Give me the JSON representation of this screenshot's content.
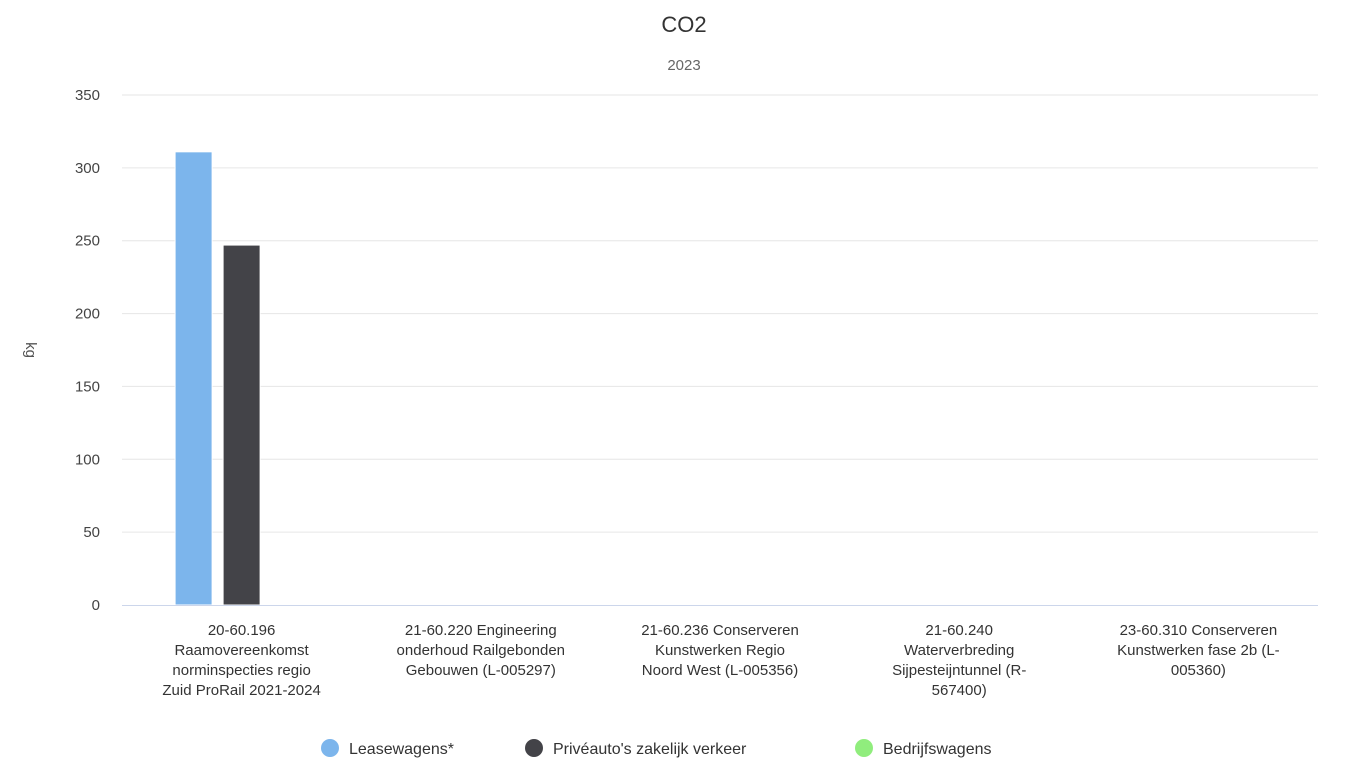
{
  "chart_data": {
    "type": "bar",
    "title": "CO2",
    "subtitle": "2023",
    "ylabel": "kg",
    "xlabel": "",
    "ylim": [
      0,
      350
    ],
    "yticks": [
      0,
      50,
      100,
      150,
      200,
      250,
      300,
      350
    ],
    "grid": true,
    "legend_position": "bottom",
    "categories": [
      [
        "20-60.196",
        "Raamovereenkomst",
        "norminspecties regio",
        "Zuid ProRail 2021-2024"
      ],
      [
        "21-60.220 Engineering",
        "onderhoud Railgebonden",
        "Gebouwen (L-005297)"
      ],
      [
        "21-60.236 Conserveren",
        "Kunstwerken Regio",
        "Noord West (L-005356)"
      ],
      [
        "21-60.240",
        "Waterverbreding",
        "Sijpesteijntunnel (R-",
        "567400)"
      ],
      [
        "23-60.310 Conserveren",
        "Kunstwerken fase 2b (L-",
        "005360)"
      ]
    ],
    "series": [
      {
        "name": "Leasewagens*",
        "color": "#7cb5ec",
        "values": [
          311,
          0,
          0,
          0,
          0
        ]
      },
      {
        "name": "Privéauto's zakelijk verkeer",
        "color": "#434348",
        "values": [
          247,
          0,
          0,
          0,
          0
        ]
      },
      {
        "name": "Bedrijfswagens",
        "color": "#90ed7d",
        "values": [
          0,
          0,
          0,
          0,
          0
        ]
      }
    ]
  }
}
